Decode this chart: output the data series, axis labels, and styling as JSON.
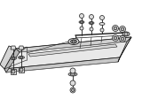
{
  "bg_color": "#ffffff",
  "line_color": "#1a1a1a",
  "gray1": "#888888",
  "gray2": "#bbbbbb",
  "gray3": "#dddddd",
  "figsize": [
    1.6,
    1.12
  ],
  "dpi": 100
}
